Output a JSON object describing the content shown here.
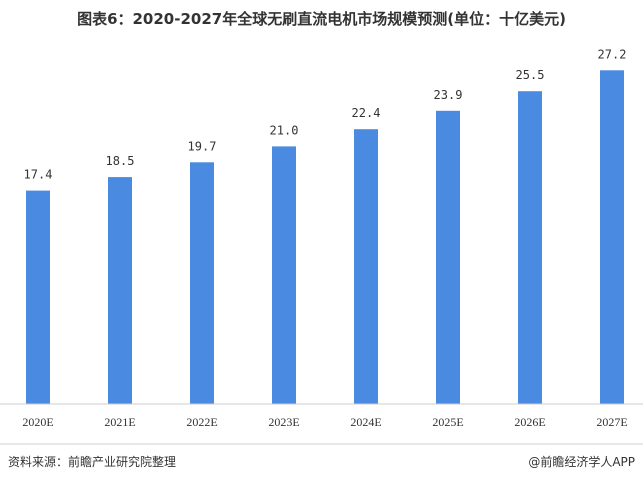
{
  "colors": {
    "bar": "#4a8ae0",
    "axis": "#cccccc",
    "footer_line": "#d0d0d0"
  },
  "footer": {
    "source": "资料来源：前瞻产业研究院整理",
    "credit": "@前瞻经济学人APP"
  },
  "chart_data": {
    "type": "bar",
    "title": "图表6：2020-2027年全球无刷直流电机市场规模预测(单位：十亿美元)",
    "categories": [
      "2020E",
      "2021E",
      "2022E",
      "2023E",
      "2024E",
      "2025E",
      "2026E",
      "2027E"
    ],
    "values": [
      17.4,
      18.5,
      19.7,
      21.0,
      22.4,
      23.9,
      25.5,
      27.2
    ],
    "value_labels": [
      "17.4",
      "18.5",
      "19.7",
      "21.0",
      "22.4",
      "23.9",
      "25.5",
      "27.2"
    ],
    "ylim": [
      0,
      30
    ],
    "grid": false,
    "legend": "none",
    "xlabel": "",
    "ylabel": ""
  }
}
